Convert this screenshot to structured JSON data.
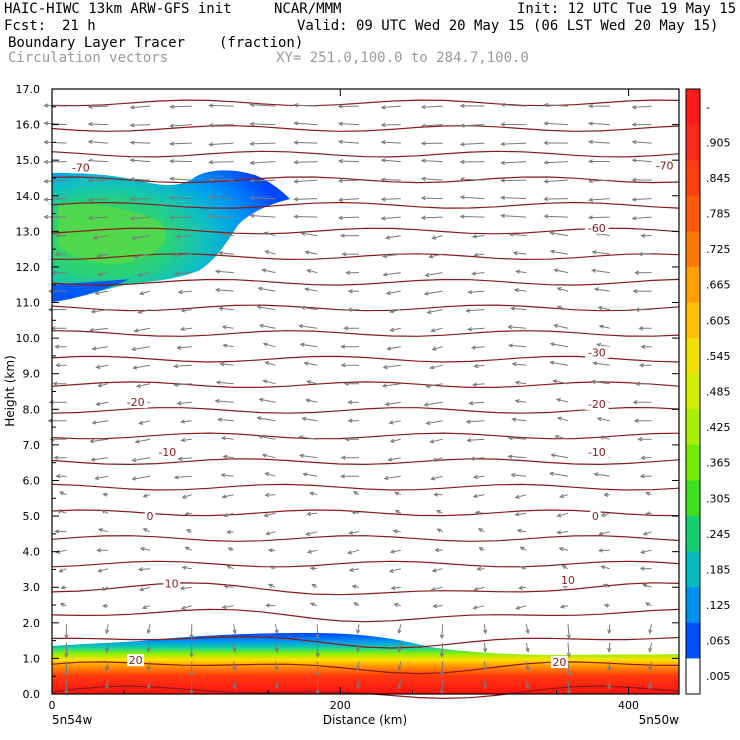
{
  "header": {
    "model": "HAIC-HIWC 13km ARW-GFS init",
    "org": "NCAR/MMM",
    "init": "Init: 12 UTC Tue 19 May 15",
    "fcst_label": "Fcst:",
    "fcst_value": "21 h",
    "valid": "Valid: 09 UTC Wed 20 May 15 (06 LST Wed 20 May 15)",
    "field": "Boundary Layer Tracer",
    "units": "(fraction)",
    "vectors": "Circulation vectors",
    "xy": "XY= 251.0,100.0 to 284.7,100.0"
  },
  "chart_data": {
    "type": "heatmap",
    "title": "Boundary Layer Tracer",
    "xlabel": "Distance (km)",
    "ylabel": "Height (km)",
    "xlim": [
      0,
      435
    ],
    "ylim": [
      0,
      17
    ],
    "x_ticks": [
      0,
      200,
      400
    ],
    "x_tick_labels": [
      "0",
      "200",
      "400"
    ],
    "y_ticks": [
      0,
      1,
      2,
      3,
      4,
      5,
      6,
      7,
      8,
      9,
      10,
      11,
      12,
      13,
      14,
      15,
      16,
      17
    ],
    "y_tick_labels": [
      "0.0",
      "1.0",
      "2.0",
      "3.0",
      "4.0",
      "5.0",
      "6.0",
      "7.0",
      "8.0",
      "9.0",
      "10.0",
      "11.0",
      "12.0",
      "13.0",
      "14.0",
      "15.0",
      "16.0",
      "17.0"
    ],
    "x_end_labels": {
      "left": "5n54w",
      "right": "5n50w"
    },
    "colorbar": {
      "levels": [
        "-",
        ".905",
        ".845",
        ".785",
        ".725",
        ".665",
        ".605",
        ".545",
        ".485",
        ".425",
        ".365",
        ".305",
        ".245",
        ".185",
        ".125",
        ".065",
        ".005"
      ],
      "colors": [
        "#ff1a1a",
        "#ff2a1a",
        "#ff3f12",
        "#ff5a0a",
        "#ff7a00",
        "#ff9f00",
        "#ffc000",
        "#f2e000",
        "#d2ee00",
        "#a8f000",
        "#74ea00",
        "#3ee020",
        "#16d070",
        "#00bcc0",
        "#0090ee",
        "#0050ff",
        "#ffffff"
      ]
    },
    "tracer_regions": [
      {
        "name": "surface_layer",
        "x_range": [
          0,
          435
        ],
        "top_km": [
          1.3,
          1.35,
          1.5,
          1.6,
          1.6,
          1.5,
          1.3,
          1.1,
          1.1
        ],
        "value_range": [
          0.005,
          1.0
        ]
      },
      {
        "name": "upper_plume",
        "x_range": [
          0,
          170
        ],
        "bottom_km": 11.0,
        "top_km": 14.6,
        "peak_value": 0.3
      }
    ],
    "temperature_contours": [
      {
        "label": "-70",
        "height_km": 14.8
      },
      {
        "label": "-60",
        "height_km": 13.1
      },
      {
        "label": "-30",
        "height_km": 9.6
      },
      {
        "label": "-20",
        "height_km": 8.2
      },
      {
        "label": "-10",
        "height_km": 6.8
      },
      {
        "label": "0",
        "height_km": 5.0
      },
      {
        "label": "10",
        "height_km": 3.1
      },
      {
        "label": "20",
        "height_km": 0.9
      }
    ],
    "contour_label_positions": [
      {
        "label": "-70",
        "x_km": 20,
        "height_km": 14.8
      },
      {
        "label": "-70",
        "x_km": 425,
        "height_km": 14.85
      },
      {
        "label": "-60",
        "x_km": 378,
        "height_km": 13.1
      },
      {
        "label": "-30",
        "x_km": 378,
        "height_km": 9.6
      },
      {
        "label": "-20",
        "x_km": 58,
        "height_km": 8.2
      },
      {
        "label": "-20",
        "x_km": 378,
        "height_km": 8.15
      },
      {
        "label": "-10",
        "x_km": 80,
        "height_km": 6.8
      },
      {
        "label": "-10",
        "x_km": 378,
        "height_km": 6.8
      },
      {
        "label": "0",
        "x_km": 68,
        "height_km": 5.0
      },
      {
        "label": "0",
        "x_km": 377,
        "height_km": 5.0
      },
      {
        "label": "10",
        "x_km": 83,
        "height_km": 3.1
      },
      {
        "label": "10",
        "x_km": 358,
        "height_km": 3.2
      },
      {
        "label": "20",
        "x_km": 58,
        "height_km": 0.95
      },
      {
        "label": "20",
        "x_km": 352,
        "height_km": 0.9
      }
    ],
    "wind_vectors": "westward (right-to-left) arrows across the domain, strongest above 13 km; nearly vertical short vectors near the surface"
  }
}
